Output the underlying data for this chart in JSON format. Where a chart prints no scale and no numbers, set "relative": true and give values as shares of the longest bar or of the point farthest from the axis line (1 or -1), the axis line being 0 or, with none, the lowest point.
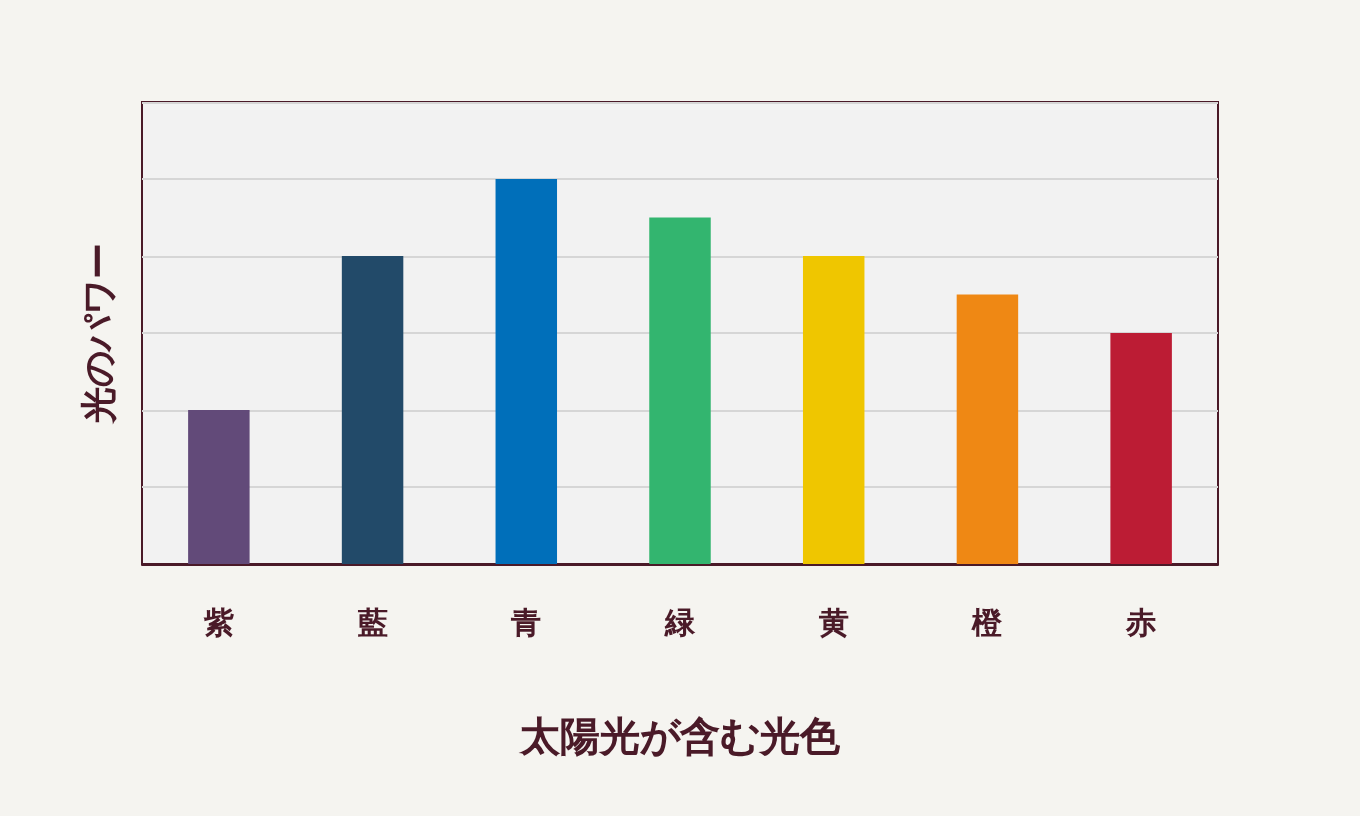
{
  "chart_data": {
    "type": "bar",
    "xlabel": "太陽光が含む光色",
    "ylabel": "光のパワー",
    "categories": [
      "紫",
      "藍",
      "青",
      "緑",
      "黄",
      "橙",
      "赤"
    ],
    "values": [
      0.4,
      0.8,
      1,
      0.9,
      0.8,
      0.7,
      0.6
    ],
    "colors": [
      "#624a79",
      "#224a69",
      "#006fba",
      "#33b56f",
      "#efc600",
      "#ef8814",
      "#bc1c34"
    ],
    "relative": true,
    "grid": "y"
  }
}
